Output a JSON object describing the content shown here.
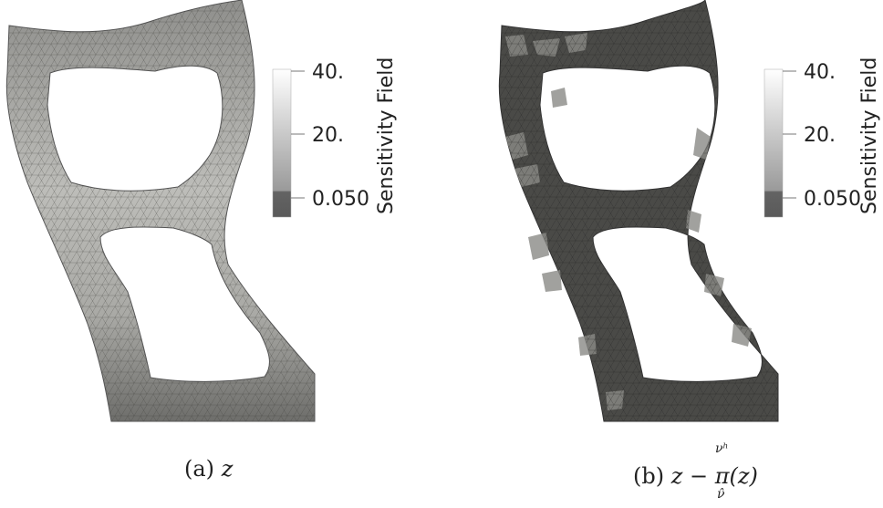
{
  "panels": [
    {
      "caption_letter": "(a)",
      "caption_expr": "z",
      "colorbar": {
        "title": "Sensitivity Field",
        "ticks": [
          "40.",
          "20.",
          "0.050"
        ]
      },
      "fill_color": "#b3b3af"
    },
    {
      "caption_letter": "(b)",
      "caption_expr": "z − π(z)",
      "caption_super": "νʰ",
      "caption_sub": "ν̂",
      "colorbar": {
        "title": "Sensitivity Field",
        "ticks": [
          "40.",
          "20.",
          "0.050"
        ]
      },
      "fill_color": "#4a4a47"
    }
  ]
}
